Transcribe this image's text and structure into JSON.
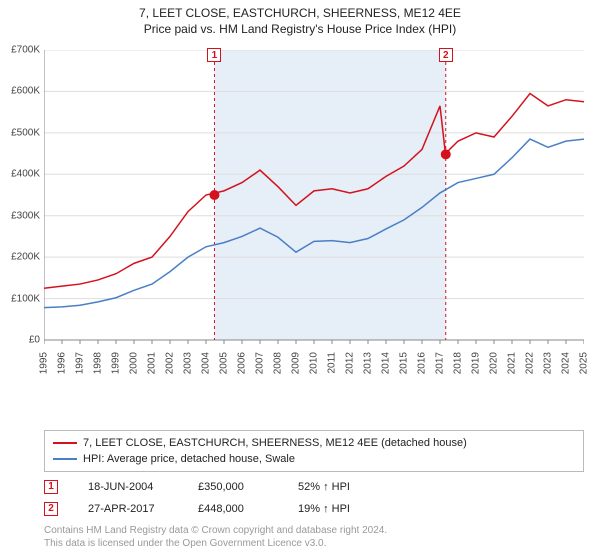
{
  "title": "7, LEET CLOSE, EASTCHURCH, SHEERNESS, ME12 4EE",
  "subtitle": "Price paid vs. HM Land Registry's House Price Index (HPI)",
  "chart": {
    "type": "line",
    "background_color": "#ffffff",
    "grid_color": "#dddddd",
    "axis_color": "#888888",
    "shaded_band_color": "#e6eef8",
    "shaded_band_x": [
      2004.47,
      2017.32
    ],
    "xlim": [
      1995,
      2025
    ],
    "ylim": [
      0,
      700000
    ],
    "y_ticks": [
      0,
      100000,
      200000,
      300000,
      400000,
      500000,
      600000,
      700000
    ],
    "y_tick_labels": [
      "£0",
      "£100K",
      "£200K",
      "£300K",
      "£400K",
      "£500K",
      "£600K",
      "£700K"
    ],
    "x_ticks": [
      1995,
      1996,
      1997,
      1998,
      1999,
      2000,
      2001,
      2002,
      2003,
      2004,
      2005,
      2006,
      2007,
      2008,
      2009,
      2010,
      2011,
      2012,
      2013,
      2014,
      2015,
      2016,
      2017,
      2018,
      2019,
      2020,
      2021,
      2022,
      2023,
      2024,
      2025
    ],
    "series": [
      {
        "name": "7, LEET CLOSE, EASTCHURCH, SHEERNESS, ME12 4EE (detached house)",
        "color": "#d4121e",
        "line_width": 1.5,
        "data": [
          [
            1995,
            125000
          ],
          [
            1996,
            130000
          ],
          [
            1997,
            135000
          ],
          [
            1998,
            145000
          ],
          [
            1999,
            160000
          ],
          [
            2000,
            185000
          ],
          [
            2001,
            200000
          ],
          [
            2002,
            250000
          ],
          [
            2003,
            310000
          ],
          [
            2004,
            350000
          ],
          [
            2005,
            360000
          ],
          [
            2006,
            380000
          ],
          [
            2007,
            410000
          ],
          [
            2008,
            370000
          ],
          [
            2009,
            325000
          ],
          [
            2010,
            360000
          ],
          [
            2011,
            365000
          ],
          [
            2012,
            355000
          ],
          [
            2013,
            365000
          ],
          [
            2014,
            395000
          ],
          [
            2015,
            420000
          ],
          [
            2016,
            460000
          ],
          [
            2017,
            565000
          ],
          [
            2017.3,
            450000
          ],
          [
            2018,
            480000
          ],
          [
            2019,
            500000
          ],
          [
            2020,
            490000
          ],
          [
            2021,
            540000
          ],
          [
            2022,
            595000
          ],
          [
            2023,
            565000
          ],
          [
            2024,
            580000
          ],
          [
            2025,
            575000
          ]
        ]
      },
      {
        "name": "HPI: Average price, detached house, Swale",
        "color": "#4a7fc5",
        "line_width": 1.5,
        "data": [
          [
            1995,
            78000
          ],
          [
            1996,
            80000
          ],
          [
            1997,
            84000
          ],
          [
            1998,
            92000
          ],
          [
            1999,
            102000
          ],
          [
            2000,
            120000
          ],
          [
            2001,
            135000
          ],
          [
            2002,
            165000
          ],
          [
            2003,
            200000
          ],
          [
            2004,
            225000
          ],
          [
            2005,
            235000
          ],
          [
            2006,
            250000
          ],
          [
            2007,
            270000
          ],
          [
            2008,
            248000
          ],
          [
            2009,
            212000
          ],
          [
            2010,
            238000
          ],
          [
            2011,
            240000
          ],
          [
            2012,
            235000
          ],
          [
            2013,
            245000
          ],
          [
            2014,
            268000
          ],
          [
            2015,
            290000
          ],
          [
            2016,
            320000
          ],
          [
            2017,
            355000
          ],
          [
            2018,
            380000
          ],
          [
            2019,
            390000
          ],
          [
            2020,
            400000
          ],
          [
            2021,
            440000
          ],
          [
            2022,
            485000
          ],
          [
            2023,
            465000
          ],
          [
            2024,
            480000
          ],
          [
            2025,
            485000
          ]
        ]
      }
    ],
    "markers": [
      {
        "id": "1",
        "x": 2004.47,
        "y_point": 350000,
        "border_color": "#d4121e",
        "text_color": "#d4121e",
        "dash_color": "#d4121e"
      },
      {
        "id": "2",
        "x": 2017.32,
        "y_point": 448000,
        "border_color": "#d4121e",
        "text_color": "#d4121e",
        "dash_color": "#d4121e"
      }
    ],
    "point_marker_radius": 5,
    "point_marker_fill": "#d4121e"
  },
  "legend": {
    "items": [
      {
        "color": "#d4121e",
        "label": "7, LEET CLOSE, EASTCHURCH, SHEERNESS, ME12 4EE (detached house)"
      },
      {
        "color": "#4a7fc5",
        "label": "HPI: Average price, detached house, Swale"
      }
    ]
  },
  "sales": [
    {
      "id": "1",
      "date": "18-JUN-2004",
      "price": "£350,000",
      "pct": "52% ↑ HPI",
      "border_color": "#d4121e",
      "text_color": "#d4121e"
    },
    {
      "id": "2",
      "date": "27-APR-2017",
      "price": "£448,000",
      "pct": "19% ↑ HPI",
      "border_color": "#d4121e",
      "text_color": "#d4121e"
    }
  ],
  "disclaimer": {
    "line1": "Contains HM Land Registry data © Crown copyright and database right 2024.",
    "line2": "This data is licensed under the Open Government Licence v3.0."
  }
}
